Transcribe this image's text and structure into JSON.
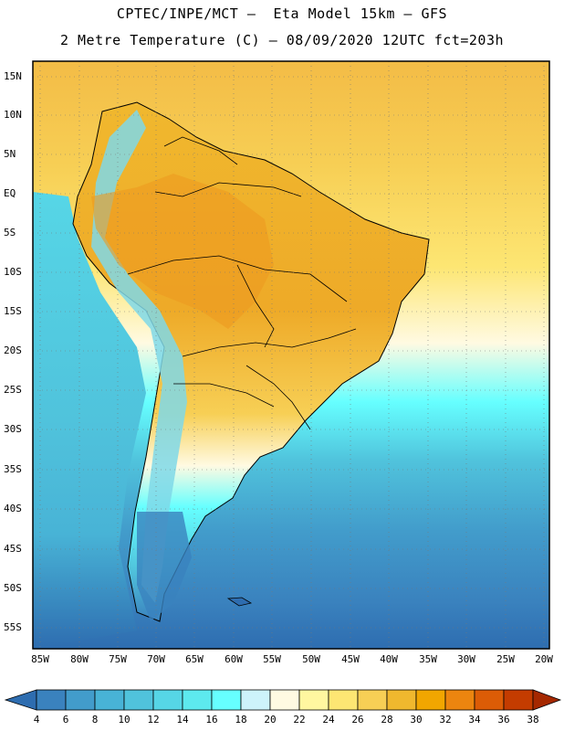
{
  "header": {
    "line1": "CPTEC/INPE/MCT –  Eta Model 15km – GFS",
    "line2": "2 Metre Temperature (C) – 08/09/2020 12UTC fct=203h"
  },
  "map": {
    "lat_labels": [
      "15N",
      "10N",
      "5N",
      "EQ",
      "5S",
      "10S",
      "15S",
      "20S",
      "25S",
      "30S",
      "35S",
      "40S",
      "45S",
      "50S",
      "55S"
    ],
    "lon_labels": [
      "85W",
      "80W",
      "75W",
      "70W",
      "65W",
      "60W",
      "55W",
      "50W",
      "45W",
      "40W",
      "35W",
      "30W",
      "25W",
      "20W"
    ],
    "ocean_color": "#5bc8d8",
    "land_warm_color": "#f0b84a",
    "andes_color": "#7fd8e8",
    "southern_ocean_color": "#3a82be"
  },
  "colorbar": {
    "labels": [
      "4",
      "6",
      "8",
      "10",
      "12",
      "14",
      "16",
      "18",
      "20",
      "22",
      "24",
      "26",
      "28",
      "30",
      "32",
      "34",
      "36",
      "38"
    ],
    "colors": [
      "#2e6db0",
      "#3a82be",
      "#429ccb",
      "#48b3d6",
      "#50c3dc",
      "#56d6e6",
      "#5de9ee",
      "#66ffff",
      "#cdf3fb",
      "#fffae2",
      "#fff7a0",
      "#fde673",
      "#f7cf55",
      "#f0b82e",
      "#f1a600",
      "#ec850f",
      "#dc5c06",
      "#c43c00",
      "#a52800"
    ]
  }
}
